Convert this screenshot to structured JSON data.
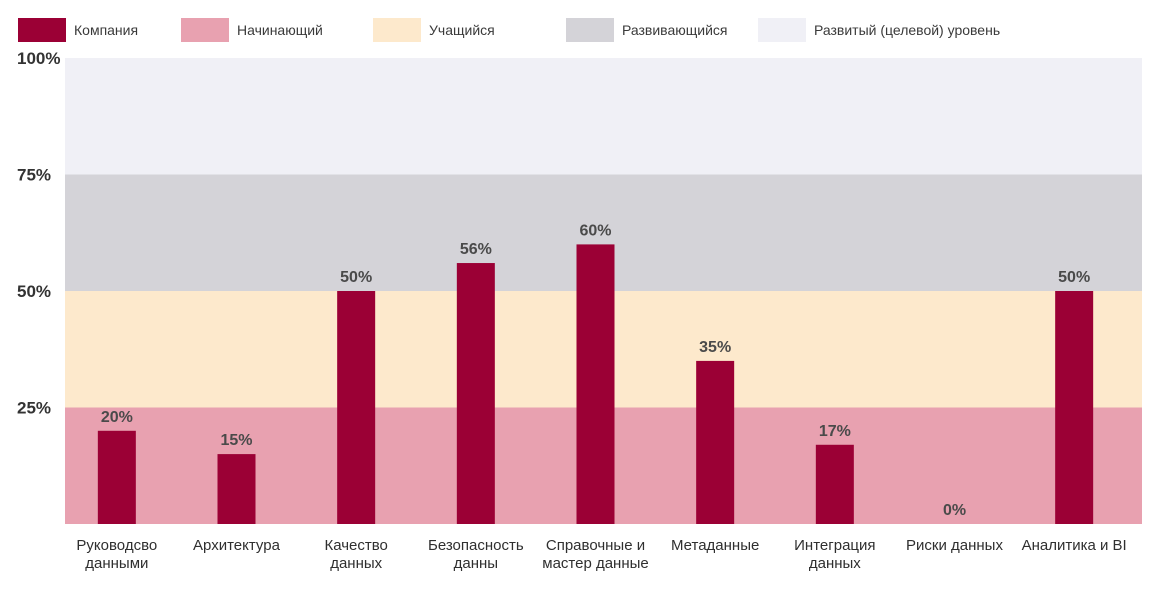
{
  "legend": {
    "company": {
      "label": "Компания",
      "color": "#9b0035"
    },
    "beginner": {
      "label": "Начинающий",
      "color": "#e8a1b0"
    },
    "learning": {
      "label": "Учащийся",
      "color": "#fde9cc"
    },
    "developing": {
      "label": "Развивающийся",
      "color": "#d4d3d8"
    },
    "developed": {
      "label": "Развитый (целевой) уровень",
      "color": "#f0f0f6"
    }
  },
  "chart_data": {
    "type": "bar",
    "categories": [
      [
        "Руководсво",
        "данными"
      ],
      [
        "Архитектура"
      ],
      [
        "Качество",
        "данных"
      ],
      [
        "Безопасность",
        "данны"
      ],
      [
        "Справочные и",
        "мастер данные"
      ],
      [
        "Метаданные"
      ],
      [
        "Интеграция",
        "данных"
      ],
      [
        "Риски данных"
      ],
      [
        "Аналитика и BI"
      ]
    ],
    "series": [
      {
        "name": "Компания",
        "color": "#9b0035",
        "values": [
          20,
          15,
          50,
          56,
          60,
          35,
          17,
          0,
          50
        ],
        "labels": [
          "20%",
          "15%",
          "50%",
          "56%",
          "60%",
          "35%",
          "17%",
          "0%",
          "50%"
        ]
      }
    ],
    "bands": [
      {
        "name": "Начинающий",
        "from": 0,
        "to": 25,
        "color": "#e8a1b0"
      },
      {
        "name": "Учащийся",
        "from": 25,
        "to": 50,
        "color": "#fde9cc"
      },
      {
        "name": "Развивающийся",
        "from": 50,
        "to": 75,
        "color": "#d4d3d8"
      },
      {
        "name": "Развитый (целевой) уровень",
        "from": 75,
        "to": 100,
        "color": "#f0f0f6"
      }
    ],
    "ylim": [
      0,
      100
    ],
    "yticks": [
      {
        "value": 25,
        "label": "25%"
      },
      {
        "value": 50,
        "label": "50%"
      },
      {
        "value": 75,
        "label": "75%"
      },
      {
        "value": 100,
        "label": "100%"
      }
    ],
    "legend_position": "top",
    "grid": false
  }
}
